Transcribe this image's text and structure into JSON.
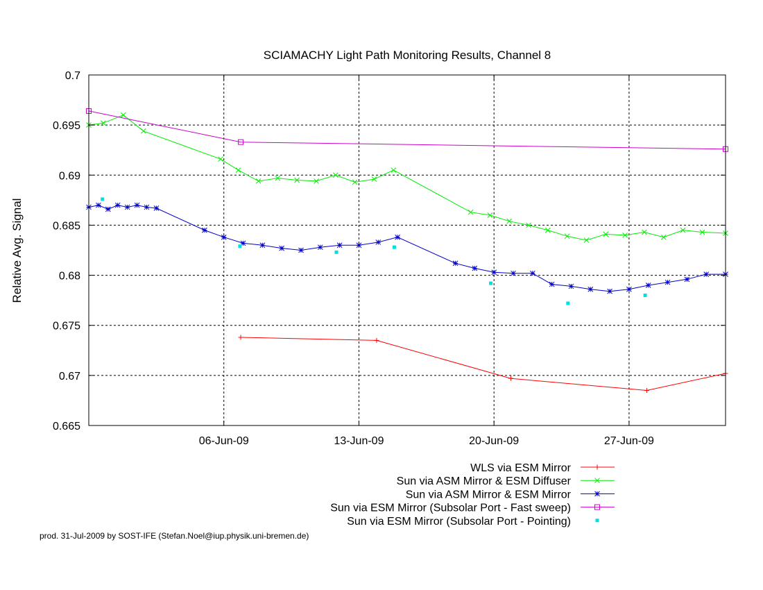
{
  "chart_data": {
    "type": "line",
    "title": "SCIAMACHY Light Path Monitoring Results, Channel 8",
    "xlabel": "",
    "ylabel": "Relative Avg. Signal",
    "xlim": [
      "2009-05-30",
      "2009-07-02"
    ],
    "ylim": [
      0.665,
      0.7
    ],
    "yticks": [
      0.665,
      0.67,
      0.675,
      0.68,
      0.685,
      0.69,
      0.695,
      0.7
    ],
    "ytick_labels": [
      "0.665",
      "0.67",
      "0.675",
      "0.68",
      "0.685",
      "0.69",
      "0.695",
      "0.7"
    ],
    "xticks": [
      "2009-06-06",
      "2009-06-13",
      "2009-06-20",
      "2009-06-27"
    ],
    "xtick_labels": [
      "06-Jun-09",
      "13-Jun-09",
      "20-Jun-09",
      "27-Jun-09"
    ],
    "grid": true,
    "legend_position": "bottom-right",
    "series": [
      {
        "name": "WLS via ESM Mirror",
        "color": "#ff0000",
        "marker": "plus",
        "style": "line",
        "points": [
          [
            "2009-06-06 21:00",
            0.6738
          ],
          [
            "2009-06-13 22:00",
            0.6735
          ],
          [
            "2009-06-20 21:00",
            0.6697
          ],
          [
            "2009-06-27 22:00",
            0.6685
          ],
          [
            "2009-07-02 00:00",
            0.6702
          ]
        ]
      },
      {
        "name": "Sun via ASM Mirror & ESM Diffuser",
        "color": "#00ee00",
        "marker": "x",
        "style": "line",
        "points": [
          [
            "2009-05-30 00:00",
            0.695
          ],
          [
            "2009-05-30 18:00",
            0.6952
          ],
          [
            "2009-05-31 19:00",
            0.696
          ],
          [
            "2009-06-01 20:00",
            0.6944
          ],
          [
            "2009-06-05 20:00",
            0.6916
          ],
          [
            "2009-06-06 18:00",
            0.6905
          ],
          [
            "2009-06-07 19:00",
            0.6894
          ],
          [
            "2009-06-08 19:00",
            0.6897
          ],
          [
            "2009-06-09 19:00",
            0.6895
          ],
          [
            "2009-06-10 19:00",
            0.6894
          ],
          [
            "2009-06-11 19:00",
            0.69
          ],
          [
            "2009-06-12 19:00",
            0.6893
          ],
          [
            "2009-06-13 19:00",
            0.6896
          ],
          [
            "2009-06-14 19:00",
            0.6905
          ],
          [
            "2009-06-18 19:00",
            0.6863
          ],
          [
            "2009-06-19 19:00",
            0.686
          ],
          [
            "2009-06-20 19:00",
            0.6854
          ],
          [
            "2009-06-21 19:00",
            0.685
          ],
          [
            "2009-06-22 19:00",
            0.6845
          ],
          [
            "2009-06-23 19:00",
            0.6839
          ],
          [
            "2009-06-24 19:00",
            0.6835
          ],
          [
            "2009-06-25 19:00",
            0.6841
          ],
          [
            "2009-06-26 19:00",
            0.684
          ],
          [
            "2009-06-27 19:00",
            0.6843
          ],
          [
            "2009-06-28 19:00",
            0.6838
          ],
          [
            "2009-06-29 19:00",
            0.6845
          ],
          [
            "2009-06-30 19:00",
            0.6843
          ],
          [
            "2009-07-02 00:00",
            0.6842
          ]
        ]
      },
      {
        "name": "Sun via ASM Mirror & ESM Mirror",
        "color": "#0000cc",
        "marker": "star",
        "style": "line",
        "dense": true,
        "points": [
          [
            "2009-05-30 00:00",
            0.6868
          ],
          [
            "2009-05-30 12:00",
            0.687
          ],
          [
            "2009-05-31 00:00",
            0.6866
          ],
          [
            "2009-05-31 12:00",
            0.687
          ],
          [
            "2009-06-01 00:00",
            0.6868
          ],
          [
            "2009-06-01 12:00",
            0.687
          ],
          [
            "2009-06-02 00:00",
            0.6868
          ],
          [
            "2009-06-02 12:00",
            0.6867
          ],
          [
            "2009-06-05 00:00",
            0.6845
          ],
          [
            "2009-06-06 00:00",
            0.6838
          ],
          [
            "2009-06-07 00:00",
            0.6832
          ],
          [
            "2009-06-08 00:00",
            0.683
          ],
          [
            "2009-06-09 00:00",
            0.6827
          ],
          [
            "2009-06-10 00:00",
            0.6825
          ],
          [
            "2009-06-11 00:00",
            0.6828
          ],
          [
            "2009-06-12 00:00",
            0.683
          ],
          [
            "2009-06-13 00:00",
            0.683
          ],
          [
            "2009-06-14 00:00",
            0.6833
          ],
          [
            "2009-06-15 00:00",
            0.6838
          ],
          [
            "2009-06-18 00:00",
            0.6812
          ],
          [
            "2009-06-19 00:00",
            0.6807
          ],
          [
            "2009-06-20 00:00",
            0.6803
          ],
          [
            "2009-06-21 00:00",
            0.6802
          ],
          [
            "2009-06-22 00:00",
            0.6802
          ],
          [
            "2009-06-23 00:00",
            0.6791
          ],
          [
            "2009-06-24 00:00",
            0.6789
          ],
          [
            "2009-06-25 00:00",
            0.6786
          ],
          [
            "2009-06-26 00:00",
            0.6784
          ],
          [
            "2009-06-27 00:00",
            0.6786
          ],
          [
            "2009-06-28 00:00",
            0.679
          ],
          [
            "2009-06-29 00:00",
            0.6793
          ],
          [
            "2009-06-30 00:00",
            0.6796
          ],
          [
            "2009-07-01 00:00",
            0.6801
          ],
          [
            "2009-07-02 00:00",
            0.6801
          ]
        ]
      },
      {
        "name": "Sun via ESM Mirror (Subsolar Port - Fast sweep)",
        "color": "#cc00cc",
        "marker": "square",
        "style": "line",
        "points": [
          [
            "2009-05-30 00:00",
            0.6964
          ],
          [
            "2009-06-06 21:00",
            0.6933
          ],
          [
            "2009-07-02 00:00",
            0.6926
          ]
        ]
      },
      {
        "name": "Sun via ESM Mirror (Subsolar Port - Pointing)",
        "color": "#00e0e0",
        "marker": "filled-square",
        "style": "points",
        "points": [
          [
            "2009-05-30 17:00",
            0.6876
          ],
          [
            "2009-06-06 20:00",
            0.6829
          ],
          [
            "2009-06-11 20:00",
            0.6823
          ],
          [
            "2009-06-14 20:00",
            0.6828
          ],
          [
            "2009-06-19 20:00",
            0.6792
          ],
          [
            "2009-06-23 20:00",
            0.6772
          ],
          [
            "2009-06-27 20:00",
            0.678
          ]
        ]
      }
    ]
  },
  "credit": "prod. 31-Jul-2009 by SOST-IFE (Stefan.Noel@iup.physik.uni-bremen.de)"
}
